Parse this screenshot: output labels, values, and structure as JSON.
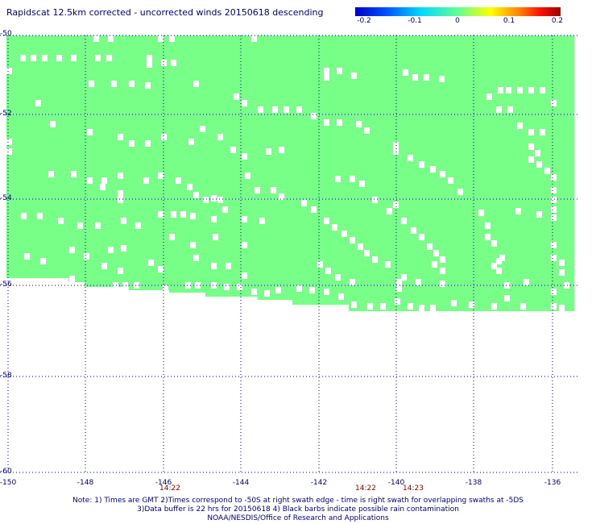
{
  "title": "Rapidscat 12.5km corrected - uncorrected winds 20150618 descending",
  "colorbar": {
    "colors": [
      "#0000c8",
      "#0050ff",
      "#00d8ff",
      "#60ff90",
      "#ffff00",
      "#ff8000",
      "#ff1000",
      "#a00000"
    ],
    "ticks": [
      "-0.2",
      "-0.1",
      "0",
      "0.1",
      "0.2"
    ]
  },
  "map": {
    "swath_color": "#77ff88",
    "grid_color": "#000080",
    "lon_range": [
      -150,
      -135
    ],
    "lat_range": [
      -60,
      -50
    ]
  },
  "lat_labels": [
    "-50",
    "-52",
    "-54",
    "-56",
    "-58",
    "-60"
  ],
  "lon_labels": [
    "-150",
    "-148",
    "-146",
    "-144",
    "-142",
    "-140",
    "-138",
    "-136"
  ],
  "time_labels": [
    "14:22",
    "14:22",
    "14:23"
  ],
  "notes": [
    "Note: 1) Times are GMT 2)Times correspond to -50S at right swath edge - time is right swath for overlapping swaths at -5DS",
    "3)Data buffer is 22 hrs for 20150618 4) Black barbs indicate possible rain contamination",
    "NOAA/NESDIS/Office of Research and Applications"
  ]
}
